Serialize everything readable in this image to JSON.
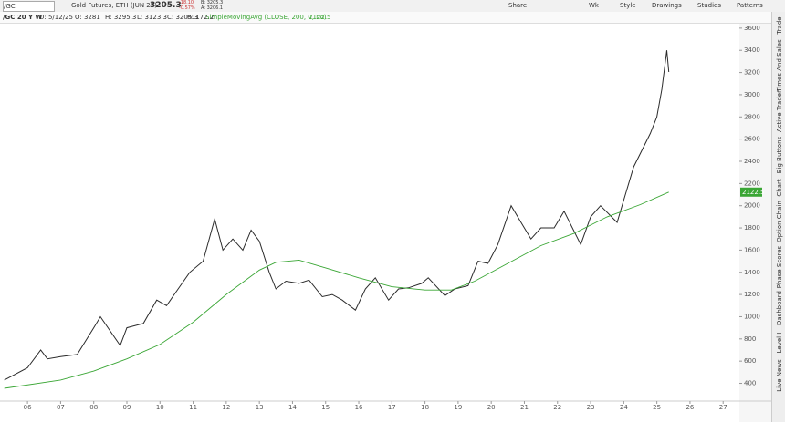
{
  "toolbar": {
    "symbol": "/GC",
    "description": "Gold Futures, ETH (JUN 25)",
    "last": "3205.3",
    "change": "-18.10",
    "change_pct": "-0.57%",
    "bid": "B: 3205.3",
    "ask": "A: 3206.1",
    "buttons": [
      "Share",
      "Wk",
      "Style",
      "Drawings",
      "Studies",
      "Patterns"
    ]
  },
  "info_bar": {
    "chart_name": "/GC 20 Y W",
    "fields": [
      "D: 5/12/25",
      "O: 3281",
      "H: 3295.3",
      "L: 3123.3",
      "C: 3205.3",
      "R: 172.2"
    ],
    "study": "SimpleMovingAvg (CLOSE, 200, 0, no)",
    "study_value": "2122.5"
  },
  "side_tabs": [
    "Trade",
    "Times And Sales",
    "Active Trader",
    "Big Buttons",
    "Chart",
    "Option Chain",
    "Phase Scores",
    "Dashboard",
    "Level I",
    "Live News"
  ],
  "chart_data": {
    "type": "line",
    "xlim": [
      2005.17,
      2027.49
    ],
    "xticks": [
      {
        "value": 2006,
        "label": "06"
      },
      {
        "value": 2007,
        "label": "07"
      },
      {
        "value": 2008,
        "label": "08"
      },
      {
        "value": 2009,
        "label": "09"
      },
      {
        "value": 2010,
        "label": "10"
      },
      {
        "value": 2011,
        "label": "11"
      },
      {
        "value": 2012,
        "label": "12"
      },
      {
        "value": 2013,
        "label": "13"
      },
      {
        "value": 2014,
        "label": "14"
      },
      {
        "value": 2015,
        "label": "15"
      },
      {
        "value": 2016,
        "label": "16"
      },
      {
        "value": 2017,
        "label": "17"
      },
      {
        "value": 2018,
        "label": "18"
      },
      {
        "value": 2019,
        "label": "19"
      },
      {
        "value": 2020,
        "label": "20"
      },
      {
        "value": 2021,
        "label": "21"
      },
      {
        "value": 2022,
        "label": "22"
      },
      {
        "value": 2023,
        "label": "23"
      },
      {
        "value": 2024,
        "label": "24"
      },
      {
        "value": 2025,
        "label": "25"
      },
      {
        "value": 2026,
        "label": "26"
      },
      {
        "value": 2027,
        "label": "27"
      }
    ],
    "ylim": [
      240,
      3640
    ],
    "yticks": [
      400,
      600,
      800,
      1000,
      1200,
      1400,
      1600,
      1800,
      2000,
      2200,
      2400,
      2600,
      2800,
      3000,
      3200,
      3400,
      3600
    ],
    "series": [
      {
        "name": "/GC",
        "color": "#2b2b2b",
        "x": [
          2005.3,
          2006.0,
          2006.4,
          2006.6,
          2007.0,
          2007.5,
          2008.0,
          2008.2,
          2008.8,
          2009.0,
          2009.5,
          2009.9,
          2010.2,
          2010.5,
          2010.9,
          2011.3,
          2011.65,
          2011.9,
          2012.2,
          2012.5,
          2012.75,
          2013.0,
          2013.3,
          2013.5,
          2013.8,
          2014.2,
          2014.5,
          2014.9,
          2015.2,
          2015.5,
          2015.9,
          2016.2,
          2016.5,
          2016.9,
          2017.2,
          2017.5,
          2017.9,
          2018.1,
          2018.6,
          2018.9,
          2019.3,
          2019.6,
          2019.9,
          2020.2,
          2020.6,
          2020.9,
          2021.2,
          2021.5,
          2021.9,
          2022.2,
          2022.7,
          2023.0,
          2023.3,
          2023.8,
          2024.0,
          2024.3,
          2024.8,
          2025.0,
          2025.15,
          2025.3,
          2025.36
        ],
        "values": [
          430,
          540,
          700,
          620,
          640,
          660,
          900,
          1000,
          740,
          900,
          940,
          1150,
          1100,
          1230,
          1400,
          1500,
          1880,
          1600,
          1700,
          1600,
          1780,
          1680,
          1400,
          1250,
          1320,
          1300,
          1330,
          1180,
          1200,
          1150,
          1060,
          1250,
          1350,
          1150,
          1250,
          1260,
          1300,
          1350,
          1190,
          1250,
          1280,
          1500,
          1480,
          1650,
          2000,
          1850,
          1700,
          1800,
          1800,
          1950,
          1650,
          1900,
          2000,
          1850,
          2050,
          2350,
          2650,
          2800,
          3050,
          3400,
          3205
        ]
      },
      {
        "name": "SimpleMovingAvg",
        "color": "#3aa635",
        "x": [
          2005.3,
          2007,
          2008,
          2009,
          2010,
          2011,
          2012,
          2013,
          2013.5,
          2014.2,
          2015,
          2016,
          2017,
          2018,
          2018.8,
          2019.5,
          2020.5,
          2021.5,
          2022.5,
          2023.5,
          2024.5,
          2025.36
        ],
        "values": [
          355,
          430,
          510,
          620,
          750,
          950,
          1200,
          1420,
          1490,
          1510,
          1440,
          1350,
          1270,
          1240,
          1240,
          1320,
          1480,
          1640,
          1750,
          1900,
          2010,
          2122.5
        ]
      }
    ]
  }
}
